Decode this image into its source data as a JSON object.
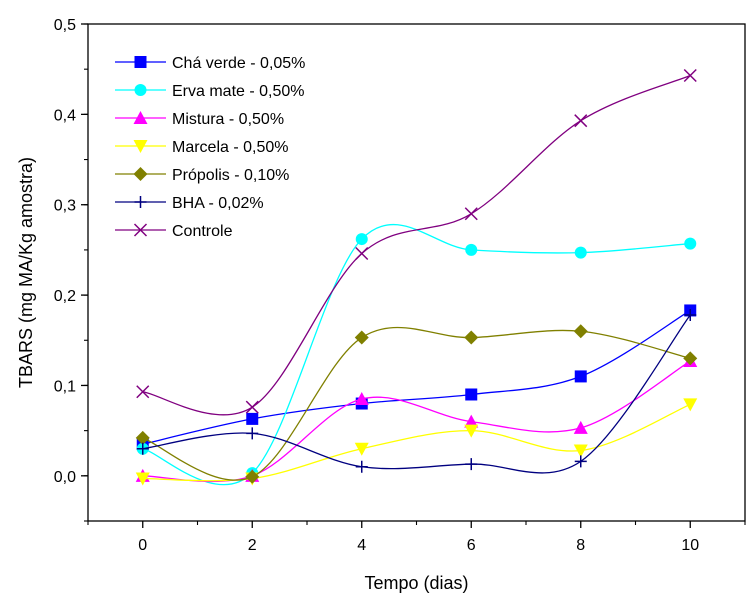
{
  "chart_data": {
    "type": "line",
    "xlabel": "Tempo (dias)",
    "ylabel": "TBARS (mg MA/Kg amostra)",
    "xlim": [
      -1,
      11
    ],
    "ylim": [
      -0.05,
      0.5
    ],
    "x": [
      0,
      2,
      4,
      6,
      8,
      10
    ],
    "x_ticks": [
      "0",
      "2",
      "4",
      "6",
      "8",
      "10"
    ],
    "y_ticks": [
      "0,0",
      "0,1",
      "0,2",
      "0,3",
      "0,4",
      "0,5"
    ],
    "legend_position": "top-left",
    "grid": false,
    "series": [
      {
        "name": "Chá verde - 0,05%",
        "color": "#0000ff",
        "marker": "square",
        "values": [
          0.035,
          0.063,
          0.08,
          0.09,
          0.11,
          0.183
        ]
      },
      {
        "name": "Erva mate - 0,50%",
        "color": "#00ffff",
        "marker": "circle",
        "values": [
          0.03,
          0.003,
          0.262,
          0.25,
          0.247,
          0.257
        ]
      },
      {
        "name": "Mistura - 0,50%",
        "color": "#ff00ff",
        "marker": "triangle-up",
        "values": [
          0.0,
          0.0,
          0.085,
          0.06,
          0.053,
          0.127
        ]
      },
      {
        "name": "Marcela - 0,50%",
        "color": "#ffff00",
        "marker": "triangle-down",
        "values": [
          -0.003,
          -0.003,
          0.03,
          0.05,
          0.028,
          0.079
        ]
      },
      {
        "name": "Própolis - 0,10%",
        "color": "#808000",
        "marker": "diamond",
        "values": [
          0.042,
          -0.001,
          0.153,
          0.153,
          0.16,
          0.13
        ]
      },
      {
        "name": "BHA - 0,02%",
        "color": "#000080",
        "marker": "plus",
        "values": [
          0.03,
          0.047,
          0.01,
          0.013,
          0.016,
          0.178
        ]
      },
      {
        "name": "Controle",
        "color": "#800080",
        "marker": "x",
        "values": [
          0.093,
          0.076,
          0.246,
          0.29,
          0.393,
          0.443
        ]
      }
    ]
  }
}
